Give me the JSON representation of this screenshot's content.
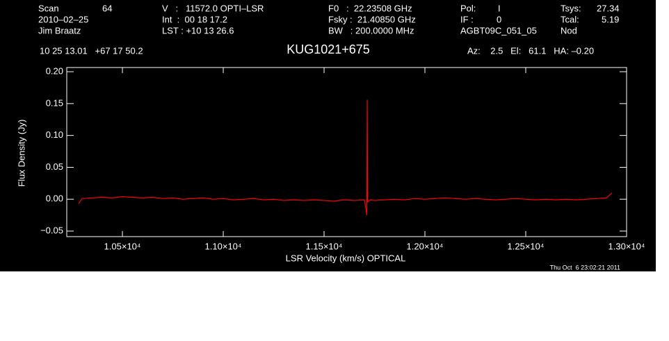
{
  "chart_data": {
    "type": "line",
    "title": "KUG1021+675",
    "xlabel": "LSR Velocity (km/s) OPTICAL",
    "ylabel": "Flux Density (Jy)",
    "annotations": [
      "Scan",
      "64",
      "V   :   11572.0 OPTI–LSR",
      "F0   :  22.23508 GHz",
      "Pol:",
      "I",
      "Tsys:",
      "27.34",
      "2010–02–25",
      "Int  :  00 18 17.2",
      "Fsky :  21.40850 GHz",
      "IF :",
      "0",
      "Tcal:",
      "5.19",
      "Jim Braatz",
      "LST : +10 13 26.6",
      "BW   : 200.0000 MHz",
      "AGBT09C_051_05",
      "Nod",
      "10 25 13.01   +67 17 50.2",
      "Az:    2.5   El:   61.1   HA: –0.20",
      "Thu Oct  6 23:02:21 2011"
    ],
    "x": [
      10283,
      10300,
      10350,
      10400,
      10450,
      10500,
      10550,
      10600,
      10650,
      10700,
      10750,
      10800,
      10850,
      10900,
      10950,
      11000,
      11050,
      11100,
      11150,
      11200,
      11250,
      11300,
      11350,
      11400,
      11450,
      11500,
      11550,
      11600,
      11650,
      11700,
      11712,
      11714,
      11716,
      11730,
      11750,
      11800,
      11850,
      11900,
      11950,
      12000,
      12050,
      12100,
      12150,
      12200,
      12250,
      12300,
      12350,
      12400,
      12450,
      12500,
      12550,
      12600,
      12650,
      12700,
      12750,
      12800,
      12850,
      12900,
      12928
    ],
    "series": [
      {
        "color": "#ff0000",
        "values": [
          -0.007,
          0.001,
          0.002,
          0.003,
          0.002,
          0.004,
          0.003,
          0.002,
          0.003,
          0.001,
          0.002,
          0.0,
          0.001,
          0.002,
          0.0,
          0.001,
          -0.001,
          0.0,
          0.001,
          -0.001,
          0.0,
          -0.002,
          -0.001,
          -0.002,
          -0.001,
          -0.002,
          -0.003,
          -0.001,
          -0.002,
          -0.001,
          -0.025,
          0.156,
          -0.004,
          -0.001,
          -0.002,
          -0.001,
          0.0,
          -0.001,
          0.001,
          0.0,
          0.001,
          0.002,
          0.001,
          0.0,
          0.001,
          0.0,
          -0.001,
          0.0,
          0.001,
          0.0,
          -0.001,
          0.0,
          -0.001,
          0.0,
          -0.001,
          0.0,
          0.001,
          0.002,
          0.01
        ]
      }
    ],
    "xlim": [
      10224,
      13000
    ],
    "ylim": [
      -0.0587,
      0.2066
    ],
    "xticks": [
      {
        "value": 10500,
        "label": "1.05×10⁴"
      },
      {
        "value": 11000,
        "label": "1.10×10⁴"
      },
      {
        "value": 11500,
        "label": "1.15×10⁴"
      },
      {
        "value": 12000,
        "label": "1.20×10⁴"
      },
      {
        "value": 12500,
        "label": "1.25×10⁴"
      },
      {
        "value": 13000,
        "label": "1.30×10⁴"
      }
    ],
    "yticks": [
      {
        "value": -0.05,
        "label": "−0.05"
      },
      {
        "value": 0,
        "label": "0.00"
      },
      {
        "value": 0.05,
        "label": "0.05"
      },
      {
        "value": 0.1,
        "label": "0.10"
      },
      {
        "value": 0.15,
        "label": "0.15"
      },
      {
        "value": 0.2,
        "label": "0.20"
      }
    ]
  }
}
